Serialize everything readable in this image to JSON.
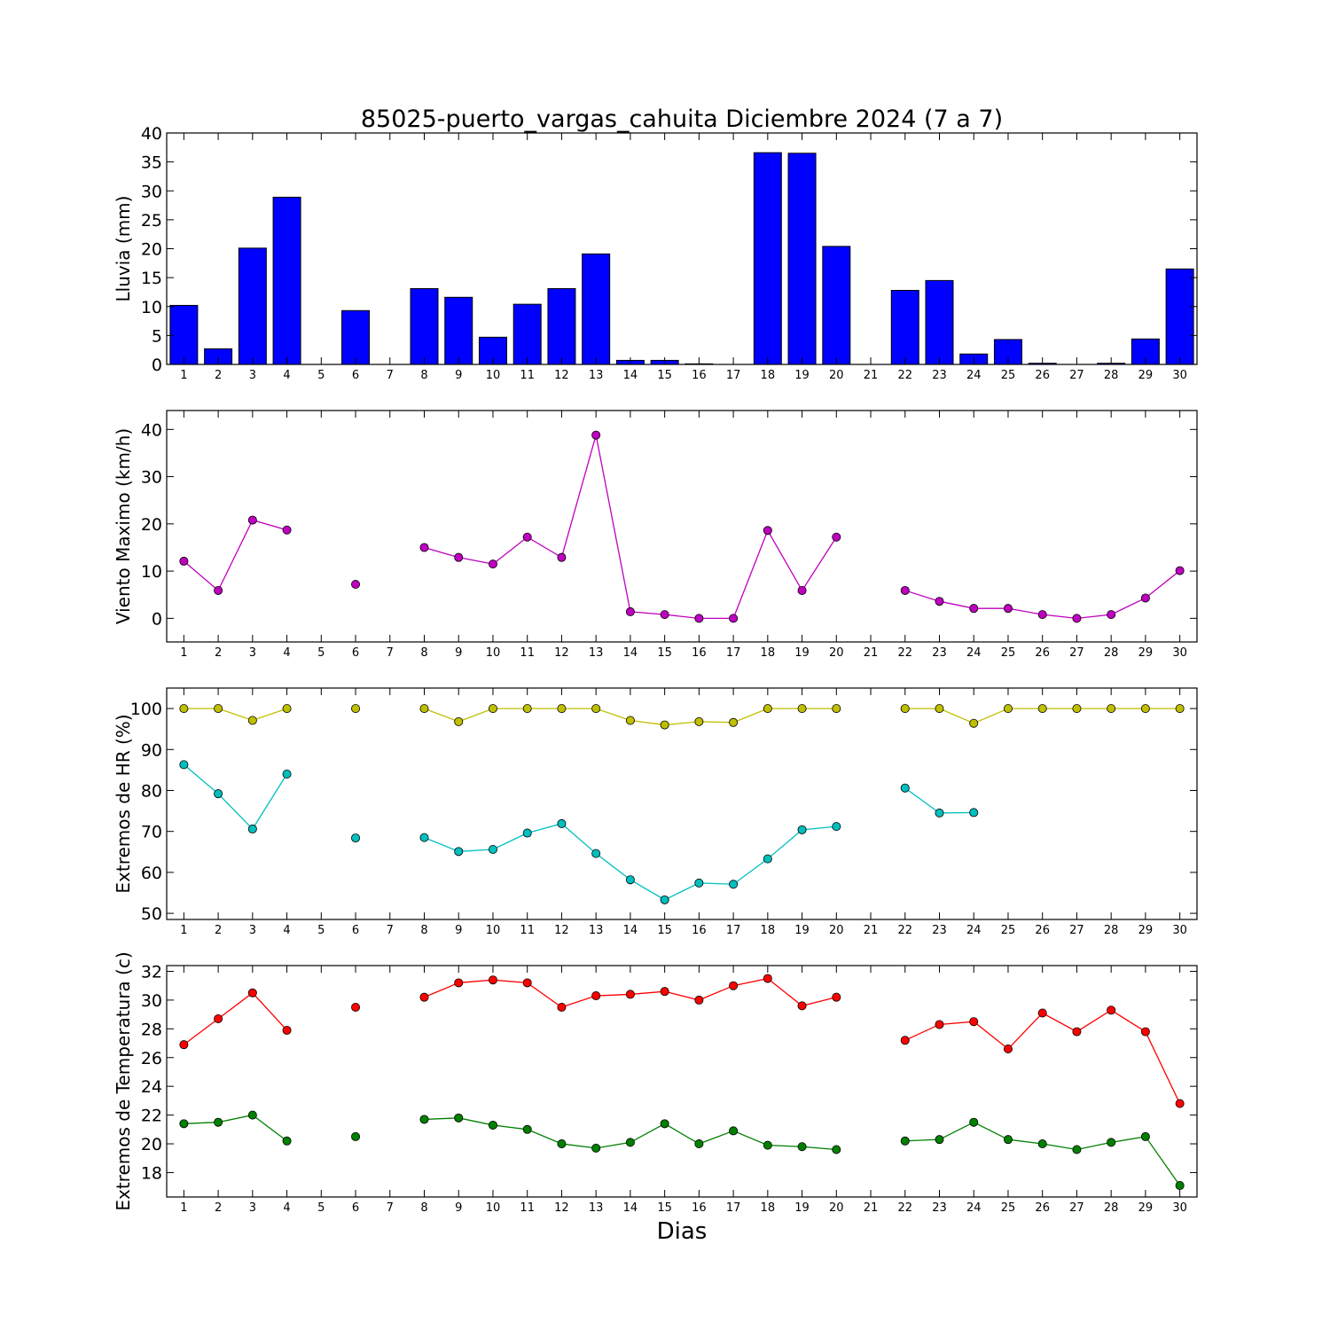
{
  "title": "85025-puerto_vargas_cahuita Diciembre 2024  (7 a 7)",
  "xlabel": "Dias",
  "chart_data": [
    {
      "type": "bar",
      "ylabel": "Lluvia (mm)",
      "ylim": [
        0,
        40
      ],
      "yticks": [
        0,
        5,
        10,
        15,
        20,
        25,
        30,
        35,
        40
      ],
      "x": [
        1,
        2,
        3,
        4,
        5,
        6,
        7,
        8,
        9,
        10,
        11,
        12,
        13,
        14,
        15,
        16,
        17,
        18,
        19,
        20,
        21,
        22,
        23,
        24,
        25,
        26,
        27,
        28,
        29,
        30
      ],
      "series": [
        {
          "color": "#0000ff",
          "values": [
            10.2,
            2.7,
            20.1,
            28.9,
            null,
            9.3,
            null,
            13.1,
            11.6,
            4.7,
            10.4,
            13.1,
            19.1,
            0.7,
            0.7,
            0.1,
            null,
            36.6,
            36.5,
            20.4,
            null,
            12.8,
            14.5,
            1.8,
            4.3,
            0.2,
            null,
            0.2,
            4.4,
            16.5
          ]
        }
      ]
    },
    {
      "type": "line",
      "ylabel": "Viento Maximo (km/h)",
      "ylim": [
        -5,
        44
      ],
      "yticks": [
        0,
        10,
        20,
        30,
        40
      ],
      "x": [
        1,
        2,
        3,
        4,
        5,
        6,
        7,
        8,
        9,
        10,
        11,
        12,
        13,
        14,
        15,
        16,
        17,
        18,
        19,
        20,
        21,
        22,
        23,
        24,
        25,
        26,
        27,
        28,
        29,
        30
      ],
      "series": [
        {
          "color": "#bf00bf",
          "values": [
            12.1,
            5.9,
            20.8,
            18.7,
            null,
            7.2,
            null,
            15.0,
            12.9,
            11.5,
            17.2,
            12.9,
            38.8,
            1.4,
            0.8,
            0.0,
            0.0,
            18.6,
            5.9,
            17.2,
            null,
            5.9,
            3.6,
            2.1,
            2.1,
            0.8,
            0.0,
            0.8,
            4.3,
            10.1
          ]
        }
      ]
    },
    {
      "type": "line",
      "ylabel": "Extremos de HR (%)",
      "ylim": [
        48.5,
        105
      ],
      "yticks": [
        50,
        60,
        70,
        80,
        90,
        100
      ],
      "x": [
        1,
        2,
        3,
        4,
        5,
        6,
        7,
        8,
        9,
        10,
        11,
        12,
        13,
        14,
        15,
        16,
        17,
        18,
        19,
        20,
        21,
        22,
        23,
        24,
        25,
        26,
        27,
        28,
        29,
        30
      ],
      "series": [
        {
          "color": "#bfbf00",
          "values": [
            100,
            100,
            97.1,
            100,
            null,
            100,
            null,
            100,
            96.8,
            100,
            100,
            100,
            100,
            97.1,
            96.0,
            96.8,
            96.6,
            100,
            100,
            100,
            null,
            100,
            100,
            96.4,
            100,
            100,
            100,
            100,
            100,
            100
          ]
        },
        {
          "color": "#00bfbf",
          "values": [
            86.3,
            79.2,
            70.6,
            84.0,
            null,
            68.4,
            null,
            68.5,
            65.1,
            65.6,
            69.6,
            71.9,
            64.6,
            58.2,
            53.3,
            57.4,
            57.1,
            63.3,
            70.4,
            71.2,
            null,
            80.6,
            74.5,
            74.6,
            null,
            null,
            null,
            null,
            null,
            null
          ]
        }
      ]
    },
    {
      "type": "line",
      "ylabel": "Extremos de Temperatura (c)",
      "ylim": [
        16.3,
        32.4
      ],
      "yticks": [
        18,
        20,
        22,
        24,
        26,
        28,
        30,
        32
      ],
      "x": [
        1,
        2,
        3,
        4,
        5,
        6,
        7,
        8,
        9,
        10,
        11,
        12,
        13,
        14,
        15,
        16,
        17,
        18,
        19,
        20,
        21,
        22,
        23,
        24,
        25,
        26,
        27,
        28,
        29,
        30
      ],
      "series": [
        {
          "color": "#ff0000",
          "values": [
            26.9,
            28.7,
            30.5,
            27.9,
            null,
            29.5,
            null,
            30.2,
            31.2,
            31.4,
            31.2,
            29.5,
            30.3,
            30.4,
            30.6,
            30.0,
            31.0,
            31.5,
            29.6,
            30.2,
            null,
            27.2,
            28.3,
            28.5,
            26.6,
            29.1,
            27.8,
            29.3,
            27.8,
            22.8
          ]
        },
        {
          "color": "#008000",
          "values": [
            21.4,
            21.5,
            22.0,
            20.2,
            null,
            20.5,
            null,
            21.7,
            21.8,
            21.3,
            21.0,
            20.0,
            19.7,
            20.1,
            21.4,
            20.0,
            20.9,
            19.9,
            19.8,
            19.6,
            null,
            20.2,
            20.3,
            21.5,
            20.3,
            20.0,
            19.6,
            20.1,
            20.5,
            17.1
          ]
        }
      ]
    }
  ]
}
